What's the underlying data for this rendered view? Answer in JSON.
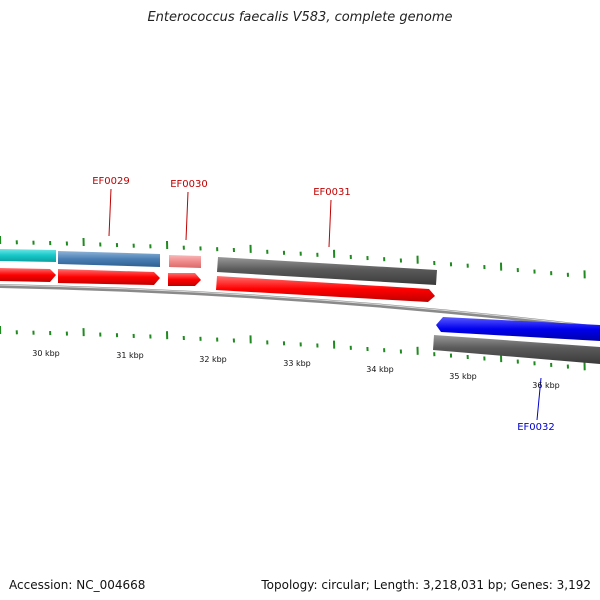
{
  "title": "Enterococcus faecalis V583, complete genome",
  "accession": "Accession: NC_004668",
  "summary": "Topology: circular; Length: 3,218,031 bp; Genes: 3,192",
  "colors": {
    "tick": "#1f8a1f",
    "plus_label": "#c00000",
    "minus_label": "#0000cc",
    "cds_red": "#ff0000",
    "gene_cyan": "#15c8c8",
    "gene_steelblue": "#4a7fb5",
    "gene_pink": "#f08a8a",
    "gene_gray": "#6a6a6a",
    "gene_blue": "#0000ee"
  },
  "scale_labels": [
    {
      "kbp": 30,
      "text": "30 kbp"
    },
    {
      "kbp": 31,
      "text": "31 kbp"
    },
    {
      "kbp": 32,
      "text": "32 kbp"
    },
    {
      "kbp": 33,
      "text": "33 kbp"
    },
    {
      "kbp": 34,
      "text": "34 kbp"
    },
    {
      "kbp": 35,
      "text": "35 kbp"
    },
    {
      "kbp": 36,
      "text": "36 kbp"
    }
  ],
  "gene_labels": [
    {
      "text": "EF0029",
      "strand": "+"
    },
    {
      "text": "EF0030",
      "strand": "+"
    },
    {
      "text": "EF0031",
      "strand": "+"
    },
    {
      "text": "EF0032",
      "strand": "-"
    }
  ]
}
